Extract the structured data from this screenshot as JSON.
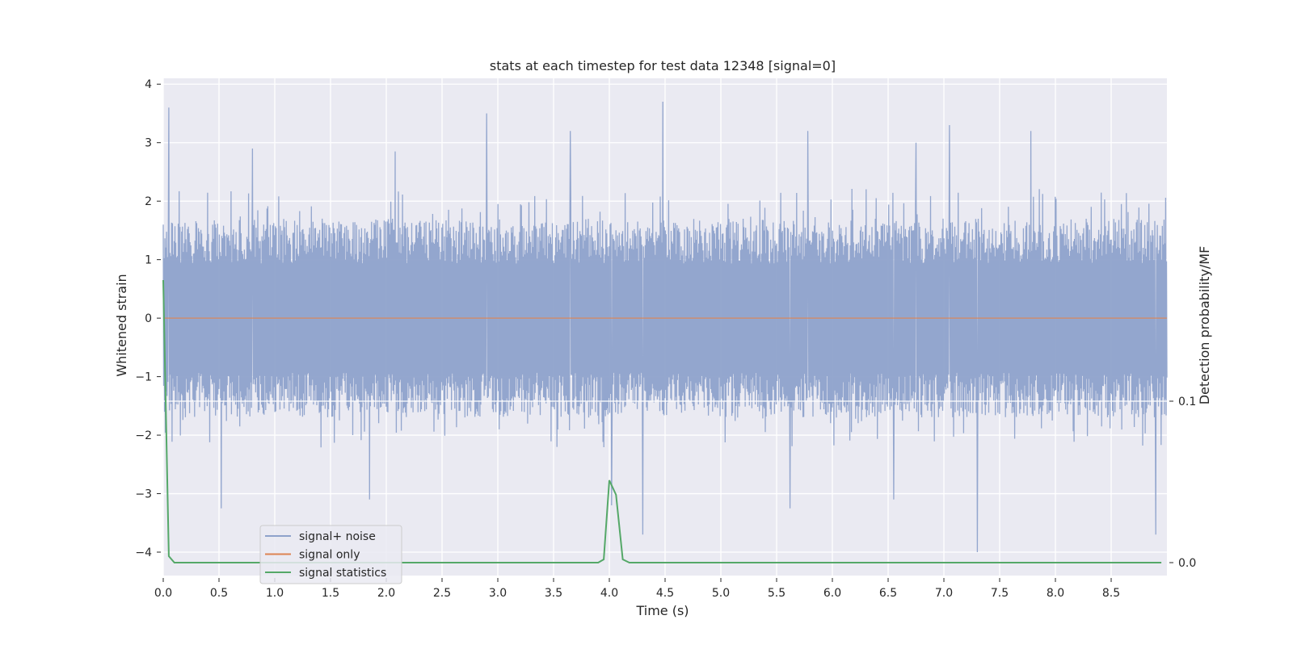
{
  "chart_data": {
    "type": "line",
    "title": "stats at each timestep for test data 12348 [signal=0]",
    "xlabel": "Time (s)",
    "ylabel": "Whitened strain",
    "y2label": "Detection probability/MF",
    "xlim": [
      0,
      9.0
    ],
    "ylim": [
      -4.4,
      4.1
    ],
    "y2lim": [
      -0.008,
      0.3
    ],
    "xticks": [
      "0.0",
      "0.5",
      "1.0",
      "1.5",
      "2.0",
      "2.5",
      "3.0",
      "3.5",
      "4.0",
      "4.5",
      "5.0",
      "5.5",
      "6.0",
      "6.5",
      "7.0",
      "7.5",
      "8.0",
      "8.5"
    ],
    "yticks": [
      "4",
      "3",
      "2",
      "1",
      "0",
      "−1",
      "−2",
      "−3",
      "−4"
    ],
    "y2ticks": [
      "0.1",
      "0.0"
    ],
    "grid": true,
    "legend_position": "lower left",
    "series": [
      {
        "name": "signal+ noise",
        "color": "#8ea2cb",
        "axis": "left",
        "description_values": {
          "band_upper_typical": 1.7,
          "band_lower_typical": -1.7,
          "spikes": [
            [
              0.05,
              3.6
            ],
            [
              0.52,
              -3.25
            ],
            [
              0.8,
              2.9
            ],
            [
              1.85,
              -3.1
            ],
            [
              2.08,
              2.85
            ],
            [
              2.9,
              3.5
            ],
            [
              3.65,
              3.2
            ],
            [
              4.02,
              -3.2
            ],
            [
              4.3,
              -3.7
            ],
            [
              4.48,
              3.7
            ],
            [
              5.62,
              -3.25
            ],
            [
              5.78,
              3.2
            ],
            [
              6.55,
              -3.1
            ],
            [
              6.75,
              3.0
            ],
            [
              7.05,
              3.3
            ],
            [
              7.3,
              -4.0
            ],
            [
              7.78,
              3.2
            ],
            [
              8.9,
              -3.7
            ]
          ]
        }
      },
      {
        "name": "signal only",
        "color": "#dd8452",
        "axis": "left",
        "constant_value": 0
      },
      {
        "name": "signal statistics",
        "color": "#55a868",
        "axis": "right",
        "x": [
          0.0,
          0.05,
          0.1,
          0.15,
          3.9,
          3.95,
          4.0,
          4.06,
          4.12,
          4.18,
          8.95
        ],
        "values": [
          0.175,
          0.004,
          0.0,
          0.0,
          0.0,
          0.002,
          0.051,
          0.042,
          0.002,
          0.0,
          0.0
        ]
      }
    ]
  }
}
